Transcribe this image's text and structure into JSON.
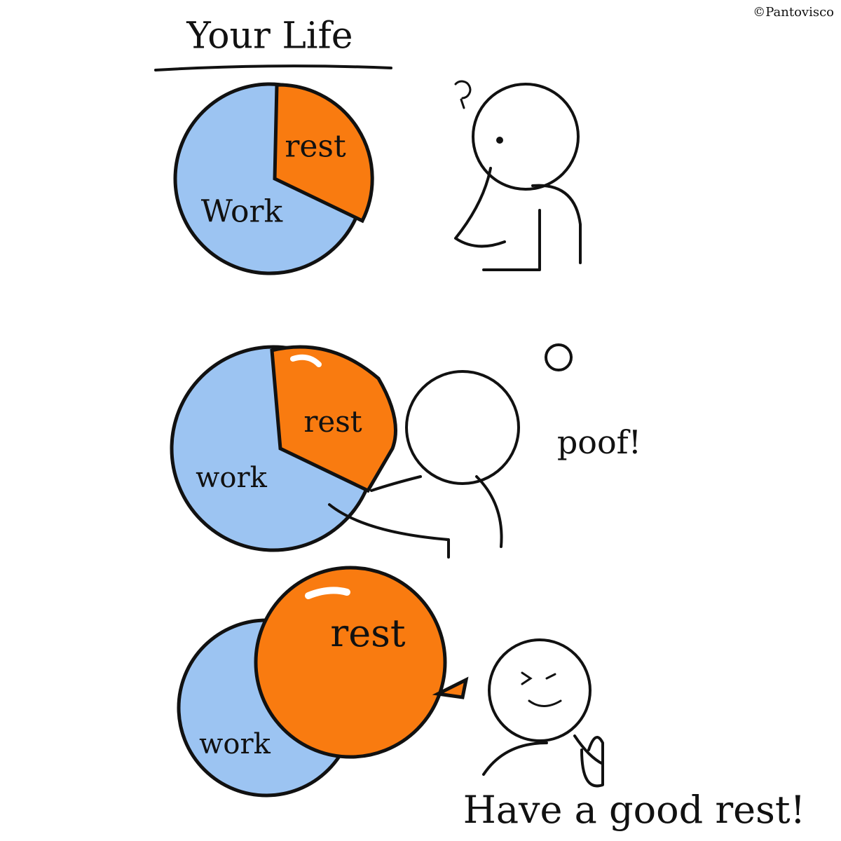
{
  "credit": "©Pantovisco",
  "title": "Your Life",
  "panels": [
    {
      "rest_label": "rest",
      "work_label": "Work"
    },
    {
      "rest_label": "rest",
      "work_label": "work",
      "sound": "poof!"
    },
    {
      "rest_label": "rest",
      "work_label": "work",
      "caption": "Have a good rest!"
    }
  ]
}
